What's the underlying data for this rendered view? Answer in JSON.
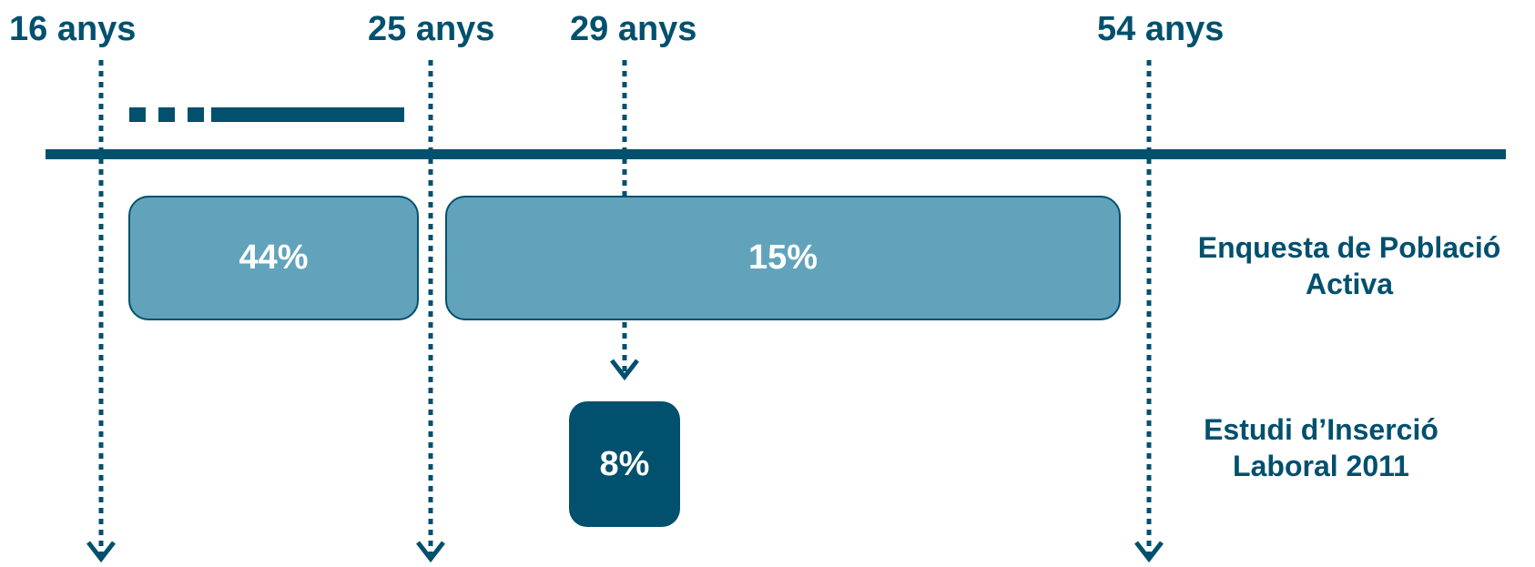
{
  "colors": {
    "dark": "#00506e",
    "light": "#62a3bc",
    "text_on_box": "#ffffff"
  },
  "age_markers": [
    {
      "label": "16 anys",
      "age": 16
    },
    {
      "label": "25 anys",
      "age": 25
    },
    {
      "label": "29 anys",
      "age": 29
    },
    {
      "label": "54 anys",
      "age": 54
    }
  ],
  "boxes": {
    "epa_16_25": {
      "value": "44%"
    },
    "epa_25_54": {
      "value": "15%"
    },
    "eil_29": {
      "value": "8%"
    }
  },
  "sources": {
    "epa": {
      "line1": "Enquesta de Població",
      "line2": "Activa"
    },
    "eil": {
      "line1": "Estudi d’Inserció",
      "line2": "Laboral 2011"
    }
  }
}
